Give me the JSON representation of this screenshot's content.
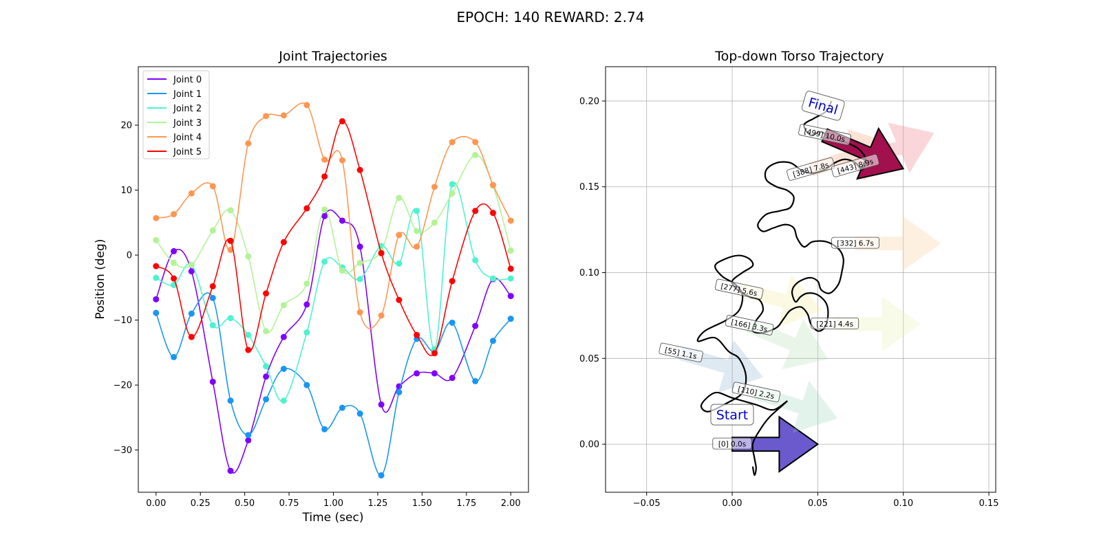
{
  "suptitle": "EPOCH: 140 REWARD:   2.74",
  "chart_data": [
    {
      "type": "line",
      "title": "Joint Trajectories",
      "xlabel": "Time (sec)",
      "ylabel": "Position (deg)",
      "xlim": [
        -0.1,
        2.1
      ],
      "ylim": [
        -36.5,
        29
      ],
      "xticks": [
        "0.00",
        "0.25",
        "0.50",
        "0.75",
        "1.00",
        "1.25",
        "1.50",
        "1.75",
        "2.00"
      ],
      "yticks": [
        "−30",
        "−20",
        "−10",
        "0",
        "10",
        "20"
      ],
      "grid": false,
      "legend": "top-left",
      "markers_x": [
        0.0,
        0.1,
        0.2,
        0.32,
        0.42,
        0.52,
        0.62,
        0.72,
        0.85,
        0.95,
        1.05,
        1.15,
        1.27,
        1.37,
        1.47,
        1.57,
        1.67,
        1.8,
        1.9,
        2.0
      ],
      "series": [
        {
          "name": "Joint 0",
          "color": "#7f00ff",
          "values": [
            -6.8,
            0.6,
            -2.5,
            -19.5,
            -33.2,
            -28.5,
            -18.7,
            -12.6,
            -7.6,
            6.0,
            5.3,
            1.3,
            -23.0,
            -20.2,
            -18.2,
            -18.2,
            -18.9,
            -10.9,
            -3.7,
            -6.3
          ]
        },
        {
          "name": "Joint 1",
          "color": "#1996f3",
          "values": [
            -8.9,
            -15.7,
            -9.0,
            -6.6,
            -22.4,
            -27.7,
            -22.2,
            -17.5,
            -20.0,
            -26.8,
            -23.5,
            -24.4,
            -33.9,
            -21.1,
            -12.9,
            -14.8,
            -10.4,
            -19.4,
            -13.2,
            -9.8
          ]
        },
        {
          "name": "Joint 2",
          "color": "#4df3ce",
          "values": [
            -3.5,
            -4.6,
            -1.5,
            -10.8,
            -9.7,
            -12.3,
            -17.1,
            -22.4,
            -11.9,
            -1.0,
            -1.9,
            -3.7,
            1.4,
            -1.3,
            6.8,
            -14.5,
            10.9,
            -0.8,
            -3.6,
            -3.6
          ]
        },
        {
          "name": "Joint 3",
          "color": "#b2f396",
          "values": [
            2.3,
            -1.2,
            -1.5,
            3.8,
            6.9,
            -0.2,
            -11.7,
            -7.7,
            -4.4,
            7.0,
            -2.4,
            -1.2,
            0.6,
            8.8,
            3.7,
            5.0,
            9.5,
            15.4,
            10.7,
            0.7
          ]
        },
        {
          "name": "Joint 4",
          "color": "#ff964f",
          "values": [
            5.7,
            6.3,
            9.5,
            10.6,
            0.8,
            17.2,
            21.4,
            21.5,
            23.1,
            14.7,
            14.6,
            -8.8,
            -9.3,
            3.1,
            1.3,
            10.5,
            17.4,
            17.4,
            10.8,
            5.3
          ]
        },
        {
          "name": "Joint 5",
          "color": "#ff0000",
          "values": [
            -1.7,
            -3.6,
            -12.6,
            -4.8,
            2.2,
            -14.6,
            -5.9,
            2.0,
            7.2,
            12.1,
            20.6,
            13.1,
            0.3,
            -6.9,
            -12.3,
            -15.1,
            -4.0,
            6.8,
            6.5,
            -2.1
          ]
        }
      ]
    },
    {
      "type": "scatter",
      "title": "Top-down Torso Trajectory",
      "xlim": [
        -0.074,
        0.154
      ],
      "ylim": [
        -0.028,
        0.22
      ],
      "xticks": [
        "−0.05",
        "0.00",
        "0.05",
        "0.10",
        "0.15"
      ],
      "yticks": [
        "0.00",
        "0.05",
        "0.10",
        "0.15",
        "0.20"
      ],
      "grid": true,
      "start_label": "Start",
      "final_label": "Final",
      "path_xy": [
        [
          0.012,
          -0.013
        ],
        [
          0.013,
          -0.018
        ],
        [
          0.014,
          -0.014
        ],
        [
          0.013,
          -0.008
        ],
        [
          0.012,
          0.0
        ],
        [
          0.016,
          0.008
        ],
        [
          0.022,
          0.016
        ],
        [
          0.032,
          0.025
        ],
        [
          0.024,
          0.02
        ],
        [
          0.014,
          0.023
        ],
        [
          0.0,
          0.027
        ],
        [
          -0.01,
          0.03
        ],
        [
          -0.018,
          0.023
        ],
        [
          -0.014,
          0.019
        ],
        [
          -0.003,
          0.024
        ],
        [
          0.006,
          0.03
        ],
        [
          0.008,
          0.04
        ],
        [
          0.004,
          0.05
        ],
        [
          -0.002,
          0.054
        ],
        [
          -0.01,
          0.062
        ],
        [
          -0.02,
          0.06
        ],
        [
          -0.016,
          0.066
        ],
        [
          -0.004,
          0.072
        ],
        [
          0.004,
          0.078
        ],
        [
          0.006,
          0.087
        ],
        [
          0.002,
          0.093
        ],
        [
          -0.006,
          0.098
        ],
        [
          -0.01,
          0.104
        ],
        [
          -0.004,
          0.108
        ],
        [
          0.004,
          0.11
        ],
        [
          0.01,
          0.108
        ],
        [
          0.012,
          0.104
        ],
        [
          0.006,
          0.1
        ],
        [
          0.0,
          0.095
        ],
        [
          0.003,
          0.09
        ],
        [
          0.01,
          0.086
        ],
        [
          0.016,
          0.084
        ],
        [
          0.018,
          0.078
        ],
        [
          0.014,
          0.072
        ],
        [
          0.012,
          0.066
        ],
        [
          0.018,
          0.065
        ],
        [
          0.026,
          0.068
        ],
        [
          0.03,
          0.073
        ],
        [
          0.034,
          0.078
        ],
        [
          0.04,
          0.08
        ],
        [
          0.044,
          0.076
        ],
        [
          0.046,
          0.07
        ],
        [
          0.05,
          0.066
        ],
        [
          0.054,
          0.068
        ],
        [
          0.056,
          0.075
        ],
        [
          0.055,
          0.082
        ],
        [
          0.05,
          0.087
        ],
        [
          0.044,
          0.088
        ],
        [
          0.04,
          0.086
        ],
        [
          0.037,
          0.083
        ],
        [
          0.035,
          0.089
        ],
        [
          0.038,
          0.094
        ],
        [
          0.045,
          0.097
        ],
        [
          0.05,
          0.095
        ],
        [
          0.052,
          0.09
        ],
        [
          0.057,
          0.088
        ],
        [
          0.062,
          0.093
        ],
        [
          0.064,
          0.1
        ],
        [
          0.065,
          0.108
        ],
        [
          0.062,
          0.114
        ],
        [
          0.055,
          0.118
        ],
        [
          0.047,
          0.118
        ],
        [
          0.042,
          0.115
        ],
        [
          0.038,
          0.12
        ],
        [
          0.036,
          0.126
        ],
        [
          0.031,
          0.128
        ],
        [
          0.024,
          0.126
        ],
        [
          0.018,
          0.124
        ],
        [
          0.015,
          0.128
        ],
        [
          0.02,
          0.134
        ],
        [
          0.028,
          0.136
        ],
        [
          0.034,
          0.138
        ],
        [
          0.036,
          0.144
        ],
        [
          0.032,
          0.148
        ],
        [
          0.026,
          0.15
        ],
        [
          0.02,
          0.154
        ],
        [
          0.02,
          0.16
        ],
        [
          0.026,
          0.164
        ],
        [
          0.034,
          0.164
        ],
        [
          0.04,
          0.16
        ],
        [
          0.046,
          0.158
        ],
        [
          0.054,
          0.16
        ],
        [
          0.06,
          0.164
        ],
        [
          0.066,
          0.166
        ],
        [
          0.072,
          0.164
        ],
        [
          0.076,
          0.16
        ],
        [
          0.078,
          0.166
        ],
        [
          0.074,
          0.172
        ],
        [
          0.066,
          0.176
        ],
        [
          0.058,
          0.178
        ],
        [
          0.052,
          0.182
        ],
        [
          0.046,
          0.18
        ],
        [
          0.042,
          0.186
        ],
        [
          0.048,
          0.19
        ],
        [
          0.055,
          0.194
        ],
        [
          0.058,
          0.2
        ]
      ],
      "waypoints": [
        {
          "label": "[0] 0.0s",
          "x": 0.0,
          "y": 0.0,
          "color": "#6a5acd",
          "opacity": 1.0,
          "dir": [
            1,
            0
          ]
        },
        {
          "label": "[55] 1.1s",
          "x": -0.03,
          "y": 0.053,
          "color": "#7fa7c9",
          "opacity": 0.25,
          "dir": [
            0.96,
            -0.28
          ]
        },
        {
          "label": "[110] 2.2s",
          "x": 0.014,
          "y": 0.03,
          "color": "#8ad1b4",
          "opacity": 0.25,
          "dir": [
            0.95,
            -0.3
          ]
        },
        {
          "label": "[166] 3.3s",
          "x": 0.01,
          "y": 0.069,
          "color": "#a8d8a8",
          "opacity": 0.25,
          "dir": [
            0.92,
            -0.39
          ]
        },
        {
          "label": "[221] 4.4s",
          "x": 0.06,
          "y": 0.07,
          "color": "#e6f2b0",
          "opacity": 0.3,
          "dir": [
            1,
            0
          ]
        },
        {
          "label": "[277] 5.6s",
          "x": 0.004,
          "y": 0.09,
          "color": "#f3eaa0",
          "opacity": 0.3,
          "dir": [
            0.97,
            -0.24
          ]
        },
        {
          "label": "[332] 6.7s",
          "x": 0.072,
          "y": 0.117,
          "color": "#f9d4a8",
          "opacity": 0.35,
          "dir": [
            1,
            0
          ]
        },
        {
          "label": "[388] 7.8s",
          "x": 0.046,
          "y": 0.16,
          "color": "#f7b088",
          "opacity": 0.35,
          "dir": [
            0.95,
            0.31
          ]
        },
        {
          "label": "[443] 8.9s",
          "x": 0.072,
          "y": 0.162,
          "color": "#f08a98",
          "opacity": 0.35,
          "dir": [
            0.92,
            0.39
          ]
        },
        {
          "label": "[499] 10.0s",
          "x": 0.054,
          "y": 0.18,
          "color": "#a3104e",
          "opacity": 1.0,
          "dir": [
            0.92,
            -0.39
          ]
        }
      ]
    }
  ]
}
